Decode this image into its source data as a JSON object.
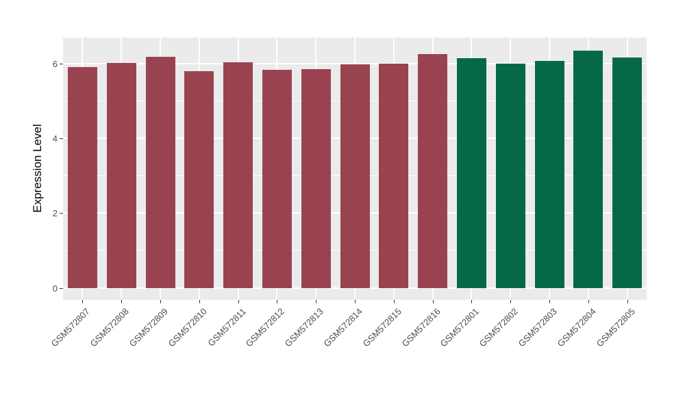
{
  "chart_data": {
    "type": "bar",
    "title": "",
    "xlabel": "",
    "ylabel": "Expression Level",
    "categories": [
      "GSM572807",
      "GSM572808",
      "GSM572809",
      "GSM572810",
      "GSM572811",
      "GSM572812",
      "GSM572813",
      "GSM572814",
      "GSM572815",
      "GSM572816",
      "GSM572801",
      "GSM572802",
      "GSM572803",
      "GSM572804",
      "GSM572805"
    ],
    "values": [
      5.92,
      6.02,
      6.19,
      5.8,
      6.04,
      5.83,
      5.85,
      5.98,
      6.0,
      6.26,
      6.15,
      6.0,
      6.07,
      6.35,
      6.17
    ],
    "bar_groups": [
      "a",
      "a",
      "a",
      "a",
      "a",
      "a",
      "a",
      "a",
      "a",
      "a",
      "b",
      "b",
      "b",
      "b",
      "b"
    ],
    "group_colors": {
      "a": "#9A4350",
      "b": "#056948"
    },
    "yticks": [
      0,
      2,
      4,
      6
    ],
    "ytick_labels": [
      "0",
      "2",
      "4",
      "6"
    ],
    "yticks_minor": [
      1,
      3,
      5
    ],
    "ylim": [
      -0.32,
      6.7
    ],
    "grid": true,
    "legend": "none",
    "panel_bg": "#EBEBEB",
    "grid_color": "#FFFFFF",
    "tick_label_color": "#4D4D4D"
  }
}
